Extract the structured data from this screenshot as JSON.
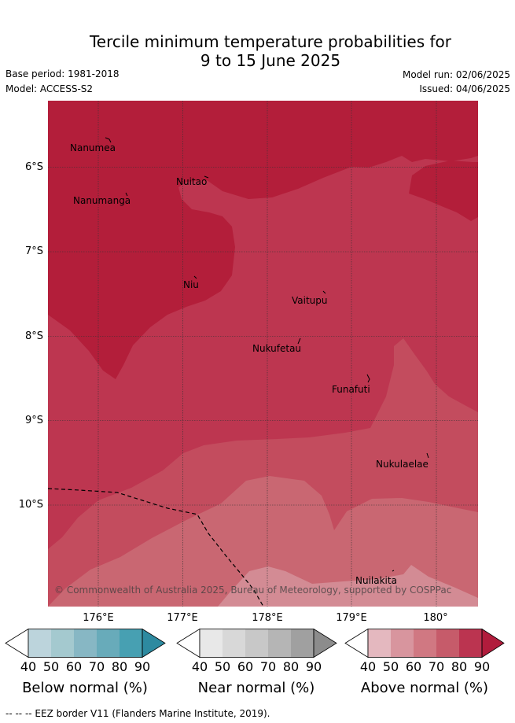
{
  "title_line1": "Tercile minimum temperature probabilities for",
  "title_line2": "9 to 15 June 2025",
  "base_period": "Base period: 1981-2018",
  "model": "Model: ACCESS-S2",
  "model_run": "Model run: 02/06/2025",
  "issued": "Issued: 04/06/2025",
  "map": {
    "lat_labels": [
      "6°S",
      "7°S",
      "8°S",
      "9°S",
      "10°S"
    ],
    "lon_labels": [
      "176°E",
      "177°E",
      "178°E",
      "179°E",
      "180°"
    ],
    "places": [
      "Nanumea",
      "Nuitao",
      "Nanumanga",
      "Niu",
      "Vaitupu",
      "Nukufetau",
      "Funafuti",
      "Nukulaelae",
      "Nuilakita"
    ],
    "copyright": "© Commonwealth of Australia 2025, Bureau of Meteorology, supported by COSPPac",
    "colors": {
      "above_90": "#b31e3a",
      "above_80": "#bd3650",
      "above_70": "#c34c5e",
      "above_60": "#c96772",
      "above_50": "#d38b94"
    }
  },
  "colorbars": [
    {
      "title": "Below normal (%)",
      "ticks": [
        "40",
        "50",
        "60",
        "70",
        "80",
        "90"
      ],
      "colors": [
        "#bcd4dc",
        "#a4c9cf",
        "#87b7c4",
        "#68abba",
        "#47a0b2",
        "#2d8aa0"
      ]
    },
    {
      "title": "Near normal (%)",
      "ticks": [
        "40",
        "50",
        "60",
        "70",
        "80",
        "90"
      ],
      "colors": [
        "#e8e8e8",
        "#d8d8d8",
        "#c8c8c8",
        "#b5b5b5",
        "#a0a0a0",
        "#8c8c8c"
      ]
    },
    {
      "title": "Above normal (%)",
      "ticks": [
        "40",
        "50",
        "60",
        "70",
        "80",
        "90"
      ],
      "colors": [
        "#e4b8bf",
        "#d8959e",
        "#d07882",
        "#c65b6a",
        "#bb3450",
        "#b11c3c"
      ]
    }
  ],
  "footer": "--  --  -- EEZ border V11 (Flanders Marine Institute, 2019)."
}
